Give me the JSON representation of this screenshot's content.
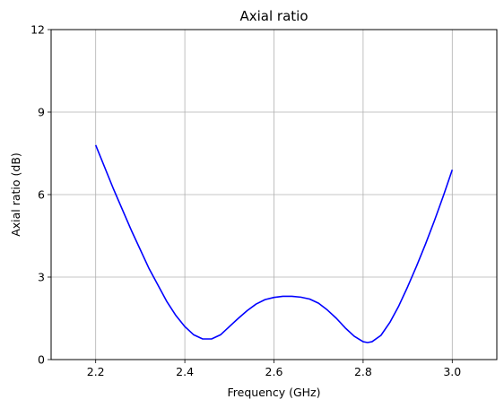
{
  "chart_data": {
    "type": "line",
    "title": "Axial ratio",
    "xlabel": "Frequency (GHz)",
    "ylabel": "Axial ratio (dB)",
    "xlim": [
      2.1,
      3.1
    ],
    "ylim": [
      0,
      12
    ],
    "x_ticks": [
      "2.2",
      "2.4",
      "2.6",
      "2.8",
      "3.0"
    ],
    "y_ticks": [
      "0",
      "3",
      "6",
      "9",
      "12"
    ],
    "grid": true,
    "series": [
      {
        "color": "#0000ff",
        "x": [
          2.2,
          2.24,
          2.28,
          2.32,
          2.36,
          2.38,
          2.4,
          2.42,
          2.44,
          2.46,
          2.48,
          2.5,
          2.52,
          2.54,
          2.56,
          2.58,
          2.6,
          2.62,
          2.64,
          2.66,
          2.68,
          2.7,
          2.72,
          2.74,
          2.76,
          2.78,
          2.8,
          2.81,
          2.82,
          2.84,
          2.86,
          2.88,
          2.9,
          2.92,
          2.94,
          2.96,
          2.98,
          3.0
        ],
        "y": [
          7.8,
          6.2,
          4.7,
          3.3,
          2.1,
          1.6,
          1.2,
          0.9,
          0.75,
          0.75,
          0.9,
          1.2,
          1.5,
          1.78,
          2.02,
          2.18,
          2.26,
          2.3,
          2.3,
          2.27,
          2.2,
          2.05,
          1.8,
          1.5,
          1.15,
          0.85,
          0.65,
          0.62,
          0.65,
          0.88,
          1.35,
          1.95,
          2.65,
          3.4,
          4.2,
          5.05,
          5.95,
          6.9
        ]
      }
    ]
  }
}
